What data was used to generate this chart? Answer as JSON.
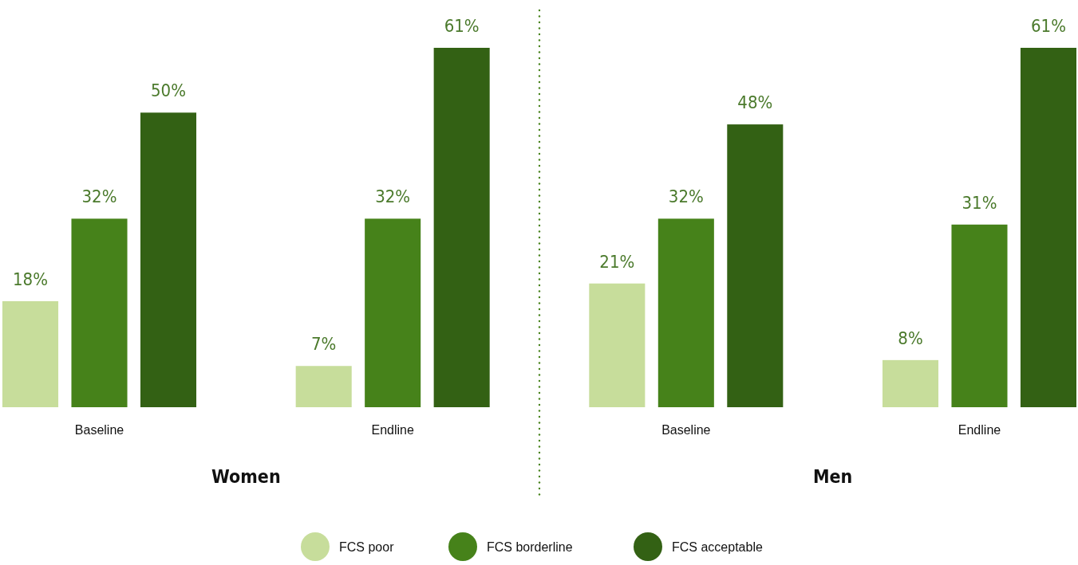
{
  "chart_data": {
    "type": "bar",
    "categories": [
      "Baseline",
      "Endline",
      "Baseline",
      "Endline"
    ],
    "annotations": [
      "Women",
      "Men"
    ],
    "legend": "bottom",
    "series": [
      {
        "name": "FCS poor",
        "color": "#c7dd9b",
        "values": [
          18,
          7,
          21,
          8
        ],
        "value_labels": [
          "18%",
          "7%",
          "21%",
          "8%"
        ]
      },
      {
        "name": "FCS borderline",
        "color": "#46821a",
        "values": [
          32,
          32,
          32,
          31
        ],
        "value_labels": [
          "32%",
          "32%",
          "32%",
          "31%"
        ]
      },
      {
        "name": "FCS acceptable",
        "color": "#336114",
        "values": [
          50,
          61,
          48,
          61
        ],
        "value_labels": [
          "50%",
          "61%",
          "48%",
          "61%"
        ]
      }
    ]
  }
}
